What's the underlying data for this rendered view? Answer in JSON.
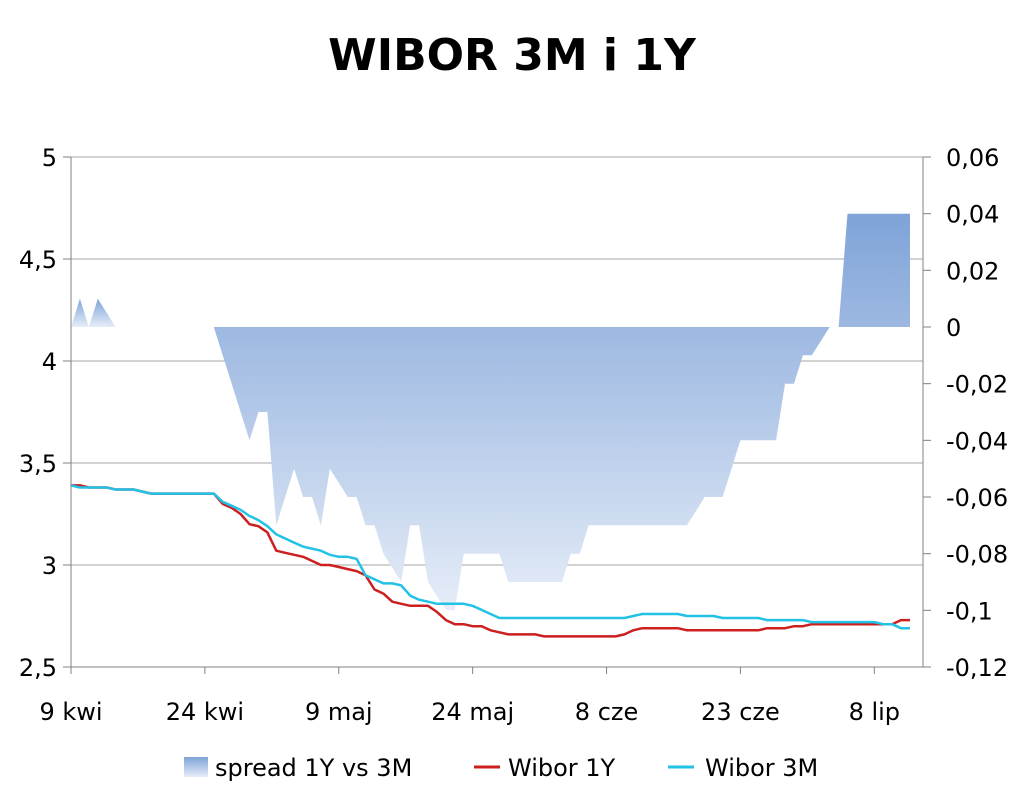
{
  "chart_data": {
    "type": "line",
    "title": "WIBOR 3M i 1Y",
    "x_tick_labels": [
      "9 kwi",
      "24 kwi",
      "9 maj",
      "24 maj",
      "8 cze",
      "23 cze",
      "8 lip"
    ],
    "y_left": {
      "lim": [
        2.5,
        5
      ],
      "ticks": [
        "2,5",
        "3",
        "3,5",
        "4",
        "4,5",
        "5"
      ]
    },
    "y_right": {
      "lim": [
        -0.12,
        0.06
      ],
      "ticks": [
        "-0,12",
        "-0,1",
        "-0,08",
        "-0,06",
        "-0,04",
        "-0,02",
        "0",
        "0,02",
        "0,04",
        "0,06"
      ]
    },
    "grid": "horizontal",
    "legend_position": "bottom",
    "x": [
      0,
      1,
      2,
      3,
      4,
      5,
      6,
      7,
      8,
      9,
      10,
      11,
      12,
      13,
      14,
      15,
      16,
      17,
      18,
      19,
      20,
      21,
      22,
      23,
      24,
      25,
      26,
      27,
      28,
      29,
      30,
      31,
      32,
      33,
      34,
      35,
      36,
      37,
      38,
      39,
      40,
      41,
      42,
      43,
      44,
      45,
      46,
      47,
      48,
      49,
      50,
      51,
      52,
      53,
      54,
      55,
      56,
      57,
      58,
      59,
      60,
      61,
      62,
      63,
      64,
      65,
      66,
      67,
      68,
      69,
      70,
      71,
      72,
      73,
      74,
      75,
      76,
      77,
      78,
      79,
      80,
      81,
      82,
      83,
      84,
      85,
      86,
      87,
      88,
      89,
      90,
      91,
      92,
      93,
      94
    ],
    "series": [
      {
        "name": "spread 1Y vs 3M",
        "kind": "area",
        "axis": "right",
        "color": "#8fb0dc",
        "values": [
          0,
          0.01,
          0,
          0.01,
          0.005,
          0,
          null,
          null,
          null,
          null,
          null,
          null,
          null,
          null,
          null,
          null,
          0,
          -0.01,
          -0.02,
          -0.03,
          -0.04,
          -0.03,
          -0.03,
          -0.07,
          -0.06,
          -0.05,
          -0.06,
          -0.06,
          -0.07,
          -0.05,
          -0.055,
          -0.06,
          -0.06,
          -0.07,
          -0.07,
          -0.08,
          -0.085,
          -0.09,
          -0.07,
          -0.07,
          -0.09,
          -0.095,
          -0.1,
          -0.1,
          -0.08,
          -0.08,
          -0.08,
          -0.08,
          -0.08,
          -0.09,
          -0.09,
          -0.09,
          -0.09,
          -0.09,
          -0.09,
          -0.09,
          -0.08,
          -0.08,
          -0.07,
          -0.07,
          -0.07,
          -0.07,
          -0.07,
          -0.07,
          -0.07,
          -0.07,
          -0.07,
          -0.07,
          -0.07,
          -0.07,
          -0.065,
          -0.06,
          -0.06,
          -0.06,
          -0.05,
          -0.04,
          -0.04,
          -0.04,
          -0.04,
          -0.04,
          -0.02,
          -0.02,
          -0.01,
          -0.01,
          -0.005,
          0,
          0,
          0.04,
          0.04,
          0.04,
          0.04,
          0.04,
          0.04,
          0.04,
          0.04
        ]
      },
      {
        "name": "Wibor 1Y",
        "kind": "line",
        "axis": "left",
        "color": "#cc1f1f",
        "values": [
          3.39,
          3.39,
          3.38,
          3.38,
          3.38,
          3.37,
          3.37,
          3.37,
          3.36,
          3.35,
          3.35,
          3.35,
          3.35,
          3.35,
          3.35,
          3.35,
          3.35,
          3.3,
          3.28,
          3.25,
          3.2,
          3.19,
          3.16,
          3.07,
          3.06,
          3.05,
          3.04,
          3.02,
          3.0,
          3.0,
          2.99,
          2.98,
          2.97,
          2.95,
          2.88,
          2.86,
          2.82,
          2.81,
          2.8,
          2.8,
          2.8,
          2.77,
          2.73,
          2.71,
          2.71,
          2.7,
          2.7,
          2.68,
          2.67,
          2.66,
          2.66,
          2.66,
          2.66,
          2.65,
          2.65,
          2.65,
          2.65,
          2.65,
          2.65,
          2.65,
          2.65,
          2.65,
          2.66,
          2.68,
          2.69,
          2.69,
          2.69,
          2.69,
          2.69,
          2.68,
          2.68,
          2.68,
          2.68,
          2.68,
          2.68,
          2.68,
          2.68,
          2.68,
          2.69,
          2.69,
          2.69,
          2.7,
          2.7,
          2.71,
          2.71,
          2.71,
          2.71,
          2.71,
          2.71,
          2.71,
          2.71,
          2.71,
          2.71,
          2.73,
          2.73
        ]
      },
      {
        "name": "Wibor 3M",
        "kind": "line",
        "axis": "left",
        "color": "#22c2e6",
        "values": [
          3.39,
          3.38,
          3.38,
          3.38,
          3.38,
          3.37,
          3.37,
          3.37,
          3.36,
          3.35,
          3.35,
          3.35,
          3.35,
          3.35,
          3.35,
          3.35,
          3.35,
          3.31,
          3.29,
          3.27,
          3.24,
          3.22,
          3.19,
          3.15,
          3.13,
          3.11,
          3.09,
          3.08,
          3.07,
          3.05,
          3.04,
          3.04,
          3.03,
          2.95,
          2.93,
          2.91,
          2.91,
          2.9,
          2.85,
          2.83,
          2.82,
          2.81,
          2.81,
          2.81,
          2.81,
          2.8,
          2.78,
          2.76,
          2.74,
          2.74,
          2.74,
          2.74,
          2.74,
          2.74,
          2.74,
          2.74,
          2.74,
          2.74,
          2.74,
          2.74,
          2.74,
          2.74,
          2.74,
          2.75,
          2.76,
          2.76,
          2.76,
          2.76,
          2.76,
          2.75,
          2.75,
          2.75,
          2.75,
          2.74,
          2.74,
          2.74,
          2.74,
          2.74,
          2.73,
          2.73,
          2.73,
          2.73,
          2.73,
          2.72,
          2.72,
          2.72,
          2.72,
          2.72,
          2.72,
          2.72,
          2.72,
          2.71,
          2.71,
          2.69,
          2.69
        ]
      }
    ]
  }
}
